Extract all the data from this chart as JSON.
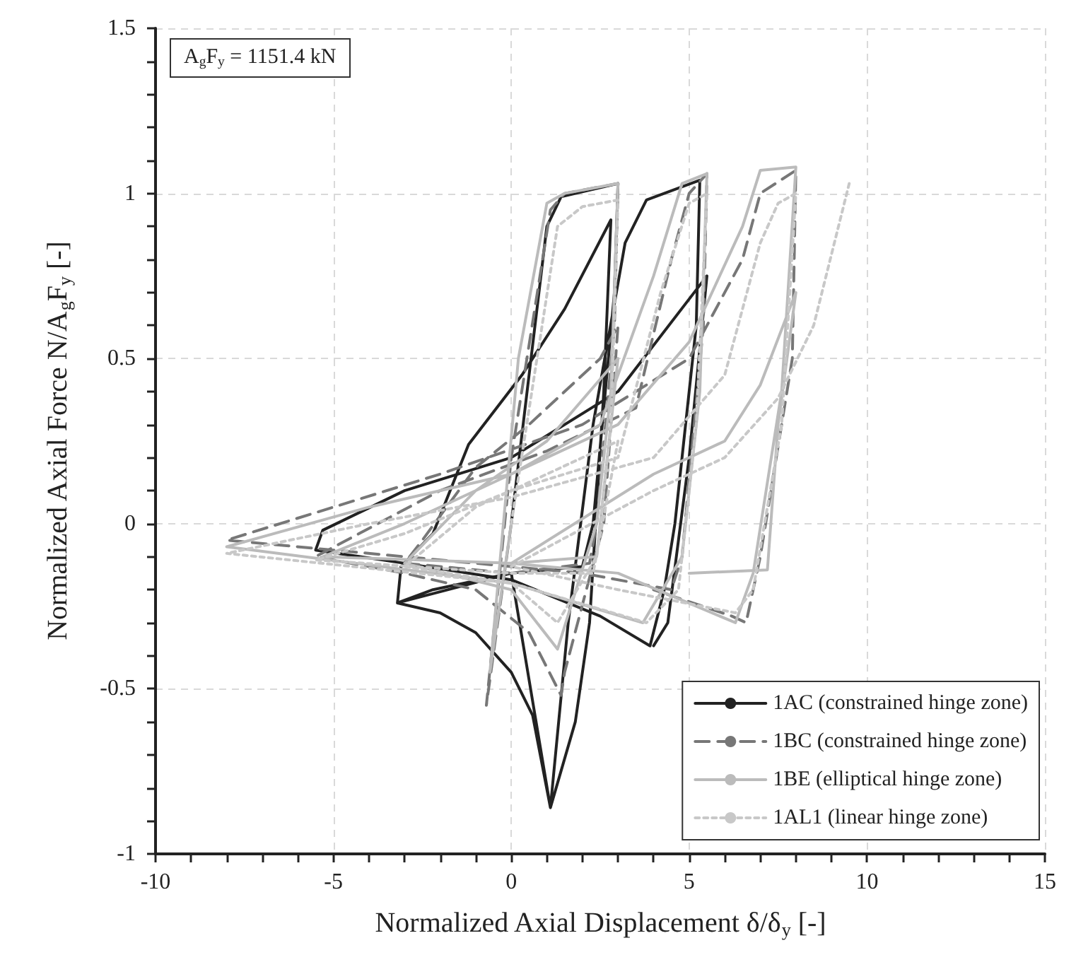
{
  "chart_data": {
    "type": "line",
    "xlabel": "Normalized Axial Displacement δ/δ$_{y}$ [-]",
    "ylabel": "Normalized Axial Force N/A$_{g}$F$_{y}$ [-]",
    "annotations": [
      "A$_{g}$F$_{y}$ = 1151.4 kN"
    ],
    "xlim": [
      -10,
      15
    ],
    "xticks": [
      -10,
      -5,
      0,
      5,
      10,
      15
    ],
    "ylim": [
      -1,
      1.5
    ],
    "yticks": [
      -1,
      -0.5,
      0,
      0.5,
      1,
      1.5
    ],
    "grid": true,
    "legend": "bottom right",
    "marker": "none",
    "series": [
      {
        "name": "1AC (constrained hinge zone)",
        "color": "#222222",
        "line_style": "solid",
        "x": [
          0,
          1.0,
          1.4,
          3.0,
          2.9,
          2.3,
          2.0,
          0,
          -3.2,
          -3.1,
          -2.2,
          -1.2,
          0.3,
          1.5,
          2.8,
          2.6,
          2.2,
          1.8,
          1.1,
          0.6,
          0,
          -1,
          -2,
          -3.2,
          -2.2,
          0,
          1.1,
          1.6,
          2.3,
          3.2,
          3.8,
          5.3,
          5.2,
          4.6,
          4.3,
          3.9,
          2.5,
          0,
          -3,
          -5.5,
          -5.3,
          -3,
          0,
          3,
          5.5,
          5.0,
          4.4,
          4.0
        ],
        "values": [
          0,
          0.9,
          0.99,
          1.03,
          0.7,
          0,
          -0.13,
          -0.15,
          -0.24,
          -0.13,
          -0.03,
          0.24,
          0.45,
          0.65,
          0.92,
          0.4,
          -0.3,
          -0.6,
          -0.86,
          -0.58,
          -0.45,
          -0.33,
          -0.27,
          -0.24,
          -0.2,
          -0.15,
          -0.86,
          -0.3,
          0.3,
          0.85,
          0.98,
          1.04,
          0.6,
          0,
          -0.2,
          -0.37,
          -0.28,
          -0.17,
          -0.12,
          -0.08,
          -0.02,
          0.1,
          0.2,
          0.4,
          0.75,
          0.2,
          -0.3,
          -0.37
        ]
      },
      {
        "name": "1BC (constrained hinge zone)",
        "color": "#777777",
        "line_style": "dashed",
        "x": [
          0,
          -0.7,
          0,
          1.1,
          1.5,
          3.0,
          2.9,
          2.4,
          2.2,
          0,
          -3,
          -2.5,
          -1,
          0.5,
          2.5,
          3.0,
          2.6,
          1.5,
          1.4,
          0.5,
          -1,
          -3,
          -5.5,
          -2,
          1,
          3.5,
          4.5,
          5.0,
          5.5,
          5.4,
          4.8,
          4.5,
          2,
          -3,
          -8,
          -5,
          -2,
          2,
          5,
          6.5,
          7,
          8,
          7.9,
          7,
          6.6,
          6.2,
          4
        ],
        "values": [
          0,
          -0.55,
          0.2,
          0.95,
          1.0,
          1.03,
          0.6,
          0,
          -0.12,
          -0.15,
          -0.12,
          -0.05,
          0.17,
          0.3,
          0.5,
          0.6,
          0,
          -0.45,
          -0.52,
          -0.33,
          -0.2,
          -0.15,
          -0.1,
          0.1,
          0.22,
          0.35,
          0.8,
          1.0,
          1.06,
          0.6,
          -0.1,
          -0.2,
          -0.15,
          -0.1,
          -0.05,
          0.05,
          0.15,
          0.3,
          0.5,
          0.8,
          1.0,
          1.07,
          0.5,
          -0.1,
          -0.3,
          -0.28,
          -0.2
        ]
      },
      {
        "name": "1BE (elliptical hinge zone)",
        "color": "#bbbbbb",
        "line_style": "solid",
        "x": [
          0,
          -0.6,
          0.2,
          1.0,
          1.5,
          3.0,
          2.8,
          2.4,
          1.3,
          0,
          -3,
          -1,
          1,
          3,
          2.4,
          0,
          -5.3,
          -3,
          0,
          2.5,
          4,
          4.8,
          5.5,
          5.3,
          4.8,
          3.7,
          0,
          -8,
          -4,
          0,
          3,
          5,
          6.5,
          7,
          8,
          7.6,
          6.8,
          6.3,
          3,
          0,
          4,
          6,
          7,
          8,
          7.5,
          7.2,
          5
        ],
        "values": [
          0,
          -0.45,
          0.5,
          0.97,
          1.0,
          1.03,
          0.4,
          0,
          -0.38,
          -0.2,
          -0.12,
          0.1,
          0.25,
          0.5,
          -0.1,
          -0.12,
          -0.1,
          0,
          0.15,
          0.3,
          0.75,
          1.03,
          1.06,
          0.4,
          -0.1,
          -0.3,
          -0.18,
          -0.07,
          0.05,
          0.15,
          0.3,
          0.55,
          0.9,
          1.07,
          1.08,
          0.4,
          -0.15,
          -0.3,
          -0.15,
          -0.12,
          0.15,
          0.25,
          0.42,
          0.7,
          0.3,
          -0.14,
          -0.15
        ]
      },
      {
        "name": "1AL1 (linear hinge zone)",
        "color": "#c8c8c8",
        "line_style": "dotted",
        "x": [
          0,
          1.3,
          2.0,
          3.0,
          2.8,
          2.4,
          1.3,
          0,
          -3,
          -1,
          1,
          3,
          2.3,
          0,
          -5.5,
          -3,
          0,
          3,
          4.2,
          5,
          5.5,
          5.2,
          4.7,
          3.8,
          0,
          -8,
          -4,
          0,
          4,
          6,
          7,
          7.5,
          8,
          7.6,
          6.8,
          6.3,
          3,
          0,
          4,
          6,
          7.5,
          8.5,
          9.5
        ],
        "values": [
          0,
          0.9,
          0.96,
          0.98,
          0.3,
          -0.1,
          -0.3,
          -0.18,
          -0.13,
          0.05,
          0.15,
          0.25,
          -0.15,
          -0.15,
          -0.11,
          -0.03,
          0.1,
          0.2,
          0.7,
          0.97,
          1.0,
          0.3,
          -0.2,
          -0.3,
          -0.18,
          -0.09,
          0,
          0.08,
          0.2,
          0.45,
          0.85,
          0.97,
          1.0,
          0.3,
          -0.2,
          -0.27,
          -0.2,
          -0.13,
          0.1,
          0.2,
          0.38,
          0.6,
          1.03
        ]
      }
    ]
  }
}
